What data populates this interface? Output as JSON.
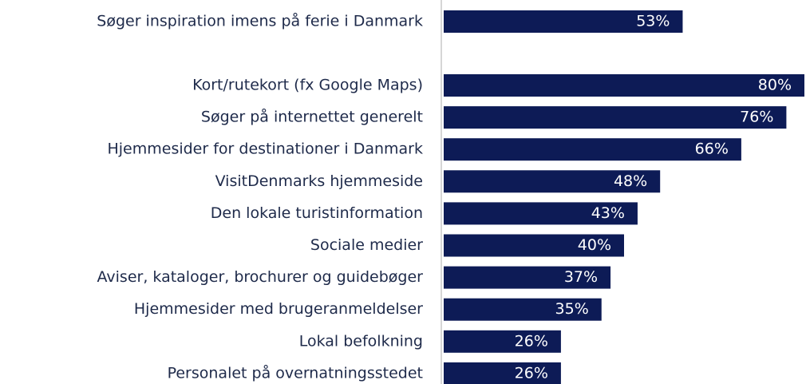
{
  "chart_data": {
    "type": "bar",
    "orientation": "horizontal",
    "categories": [
      "Søger inspiration imens på ferie i Danmark",
      "Kort/rutekort (fx Google Maps)",
      "Søger på internettet generelt",
      "Hjemmesider for destinationer i Danmark",
      "VisitDenmarks hjemmeside",
      "Den lokale turistinformation",
      "Sociale medier",
      "Aviser, kataloger, brochurer og guidebøger",
      "Hjemmesider med brugeranmeldelser",
      "Lokal befolkning",
      "Personalet på overnatningsstedet"
    ],
    "values": [
      53,
      80,
      76,
      66,
      48,
      43,
      40,
      37,
      35,
      26,
      26
    ],
    "value_labels": [
      "53%",
      "80%",
      "76%",
      "66%",
      "48%",
      "43%",
      "40%",
      "37%",
      "35%",
      "26%",
      "26%"
    ],
    "color": "#0d1b56"
  }
}
